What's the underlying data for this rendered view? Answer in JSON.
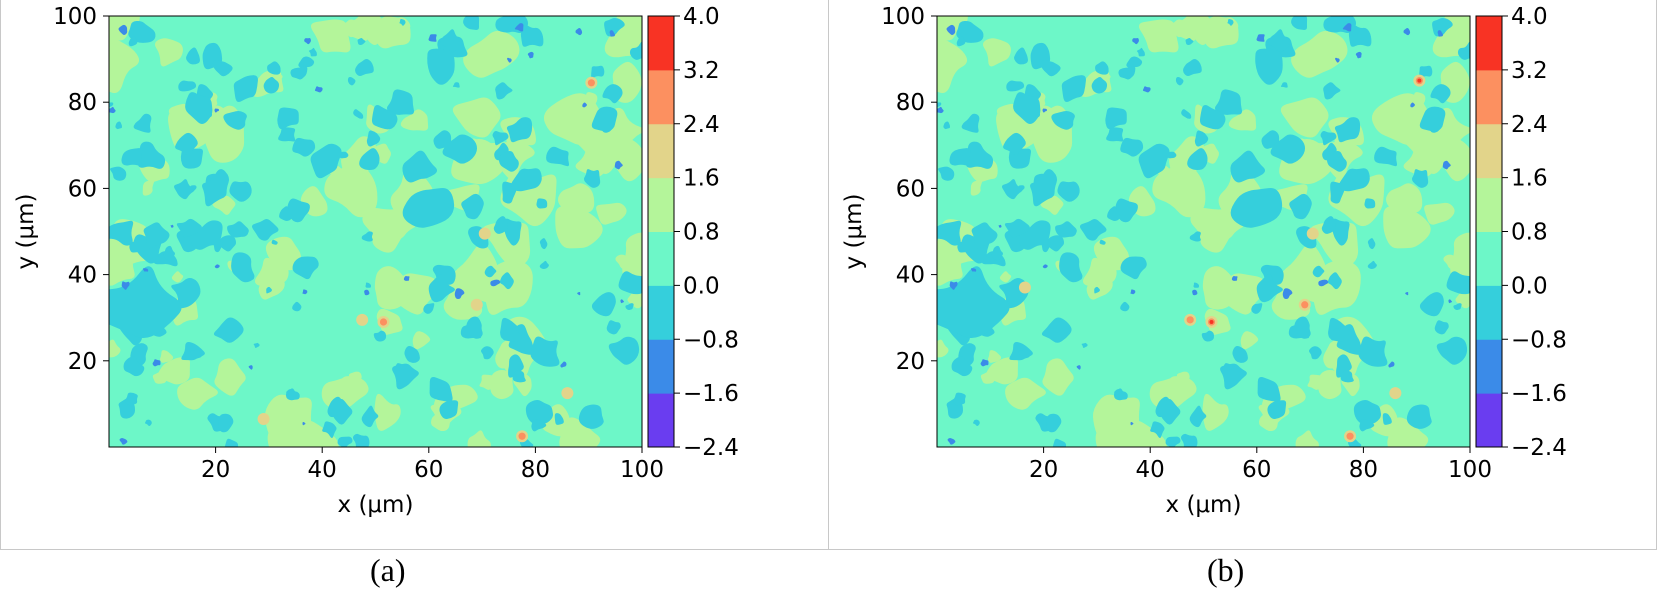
{
  "panels": [
    {
      "caption": "(a)",
      "chart_data": {
        "type": "heatmap",
        "plot_kind": "filled contour map",
        "xlabel": "x (μm)",
        "ylabel": "y (μm)",
        "xlim": [
          0,
          100
        ],
        "ylim": [
          0,
          100
        ],
        "xticks": [
          "20",
          "40",
          "60",
          "80",
          "100"
        ],
        "yticks": [
          "20",
          "40",
          "60",
          "80",
          "100"
        ],
        "colorbar": {
          "colormap": "rainbow",
          "levels": [
            -2.4,
            -1.6,
            -0.8,
            0.0,
            0.8,
            1.6,
            2.4,
            3.2,
            4.0
          ],
          "tick_labels": [
            "−2.4",
            "−1.6",
            "−0.8",
            "0.0",
            "0.8",
            "1.6",
            "2.4",
            "3.2",
            "4.0"
          ],
          "colors": [
            "#6a3df0",
            "#3b8be8",
            "#35cfdc",
            "#6df7c8",
            "#b4f59a",
            "#e2d48a",
            "#fc9060",
            "#f83324"
          ]
        },
        "background_level": "0.0 to 0.8",
        "hotspots": [
          {
            "x": 51.5,
            "y": 29,
            "level": "2.4 to 3.2"
          },
          {
            "x": 77.5,
            "y": 2.5,
            "level": "2.4 to 3.2"
          },
          {
            "x": 90.5,
            "y": 84.5,
            "level": "2.4 to 3.2"
          },
          {
            "x": 70.5,
            "y": 49.5,
            "level": "1.6 to 2.4"
          },
          {
            "x": 69,
            "y": 33,
            "level": "1.6 to 2.4"
          },
          {
            "x": 86,
            "y": 12.5,
            "level": "1.6 to 2.4"
          },
          {
            "x": 47.5,
            "y": 29.5,
            "level": "1.6 to 2.4"
          },
          {
            "x": 29,
            "y": 6.5,
            "level": "1.6 to 2.4"
          }
        ]
      }
    },
    {
      "caption": "(b)",
      "chart_data": {
        "type": "heatmap",
        "plot_kind": "filled contour map",
        "xlabel": "x (μm)",
        "ylabel": "y (μm)",
        "xlim": [
          0,
          100
        ],
        "ylim": [
          0,
          100
        ],
        "xticks": [
          "20",
          "40",
          "60",
          "80",
          "100"
        ],
        "yticks": [
          "20",
          "40",
          "60",
          "80",
          "100"
        ],
        "colorbar": {
          "colormap": "rainbow",
          "levels": [
            -2.4,
            -1.6,
            -0.8,
            0.0,
            0.8,
            1.6,
            2.4,
            3.2,
            4.0
          ],
          "tick_labels": [
            "−2.4",
            "−1.6",
            "−0.8",
            "0.0",
            "0.8",
            "1.6",
            "2.4",
            "3.2",
            "4.0"
          ],
          "colors": [
            "#6a3df0",
            "#3b8be8",
            "#35cfdc",
            "#6df7c8",
            "#b4f59a",
            "#e2d48a",
            "#fc9060",
            "#f83324"
          ]
        },
        "background_level": "0.0 to 0.8",
        "hotspots": [
          {
            "x": 51.5,
            "y": 29,
            "level": "3.2 to 4.0"
          },
          {
            "x": 77.5,
            "y": 2.5,
            "level": "2.4 to 3.2"
          },
          {
            "x": 90.5,
            "y": 85,
            "level": "3.2 to 4.0"
          },
          {
            "x": 70.5,
            "y": 49.5,
            "level": "1.6 to 2.4"
          },
          {
            "x": 69,
            "y": 33,
            "level": "2.4 to 3.2"
          },
          {
            "x": 86,
            "y": 12.5,
            "level": "1.6 to 2.4"
          },
          {
            "x": 47.5,
            "y": 29.5,
            "level": "2.4 to 3.2"
          },
          {
            "x": 16.5,
            "y": 37,
            "level": "1.6 to 2.4"
          }
        ]
      }
    }
  ]
}
